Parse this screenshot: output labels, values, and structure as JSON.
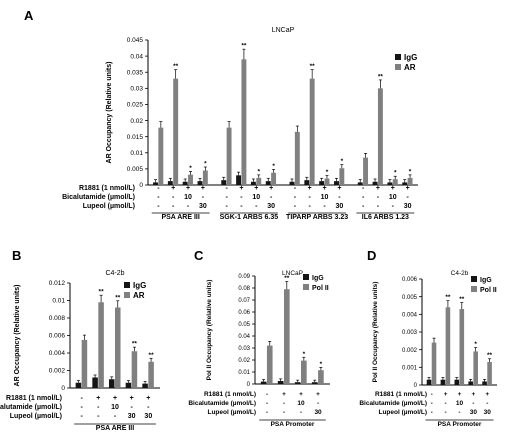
{
  "chart_data": [
    {
      "panel": "A",
      "type": "bar",
      "title": "LNCaP",
      "ylabel": "AR Occupancy (Relative units)",
      "ylim": [
        0,
        0.045
      ],
      "yticks": [
        "0",
        "0.005",
        "0.01",
        "0.015",
        "0.02",
        "0.025",
        "0.03",
        "0.035",
        "0.04",
        "0.045"
      ],
      "series": [
        {
          "name": "IgG"
        },
        {
          "name": "AR"
        }
      ],
      "colors": [
        "#151515",
        "#808080"
      ],
      "groups": [
        {
          "label": "PSA ARE III",
          "conditions": [
            {
              "igg": 0.0008,
              "ar": 0.0178,
              "sig": ""
            },
            {
              "igg": 0.0012,
              "ar": 0.033,
              "sig": "**"
            },
            {
              "igg": 0.001,
              "ar": 0.0032,
              "sig": "*"
            },
            {
              "igg": 0.0012,
              "ar": 0.0045,
              "sig": "*"
            }
          ]
        },
        {
          "label": "SGK-1 ARBS 6.35",
          "conditions": [
            {
              "igg": 0.0015,
              "ar": 0.0178,
              "sig": ""
            },
            {
              "igg": 0.003,
              "ar": 0.039,
              "sig": "**"
            },
            {
              "igg": 0.001,
              "ar": 0.0022,
              "sig": "*"
            },
            {
              "igg": 0.0012,
              "ar": 0.0038,
              "sig": "*"
            }
          ]
        },
        {
          "label": "TIPARP ARBS 3.23",
          "conditions": [
            {
              "igg": 0.001,
              "ar": 0.0165,
              "sig": ""
            },
            {
              "igg": 0.0015,
              "ar": 0.033,
              "sig": "**"
            },
            {
              "igg": 0.0012,
              "ar": 0.002,
              "sig": "*"
            },
            {
              "igg": 0.0012,
              "ar": 0.0052,
              "sig": "*"
            }
          ]
        },
        {
          "label": "IL6 ARBS 1.23",
          "conditions": [
            {
              "igg": 0.0008,
              "ar": 0.0085,
              "sig": ""
            },
            {
              "igg": 0.001,
              "ar": 0.03,
              "sig": "**"
            },
            {
              "igg": 0.0008,
              "ar": 0.0018,
              "sig": "*"
            },
            {
              "igg": 0.0008,
              "ar": 0.0022,
              "sig": "*"
            }
          ]
        }
      ],
      "treatment_labels": [
        "R1881 (1 nmol/L)",
        "Bicalutamide (µmol/L)",
        "Lupeol (µmol/L)"
      ],
      "treatment_values": [
        [
          "-",
          "+",
          "+",
          "+"
        ],
        [
          "-",
          "-",
          "10",
          "-"
        ],
        [
          "-",
          "-",
          "-",
          "30"
        ]
      ]
    },
    {
      "panel": "B",
      "type": "bar",
      "title": "C4-2b",
      "ylabel": "AR Occupancy (Relative units)",
      "ylim": [
        0,
        0.012
      ],
      "yticks": [
        "0",
        "0.002",
        "0.004",
        "0.006",
        "0.008",
        "0.01",
        "0.012"
      ],
      "series": [
        {
          "name": "IgG"
        },
        {
          "name": "AR"
        }
      ],
      "colors": [
        "#151515",
        "#808080"
      ],
      "groups": [
        {
          "label": "PSA ARE III",
          "conditions": [
            {
              "igg": 0.0006,
              "ar": 0.0055,
              "sig": ""
            },
            {
              "igg": 0.0012,
              "ar": 0.0098,
              "sig": "**"
            },
            {
              "igg": 0.001,
              "ar": 0.0092,
              "sig": "**"
            },
            {
              "igg": 0.0006,
              "ar": 0.0042,
              "sig": "**"
            },
            {
              "igg": 0.0005,
              "ar": 0.003,
              "sig": "**"
            }
          ]
        }
      ],
      "treatment_labels": [
        "R1881 (1 nmol/L)",
        "Bicalutamide (µmol/L)",
        "Lupeol (µmol/L)"
      ],
      "treatment_values": [
        [
          "-",
          "+",
          "+",
          "+",
          "+"
        ],
        [
          "-",
          "-",
          "10",
          "-",
          "-"
        ],
        [
          "-",
          "-",
          "-",
          "30",
          "30"
        ]
      ]
    },
    {
      "panel": "C",
      "type": "bar",
      "title": "LNCaP",
      "ylabel": "Pol II Occupancy (Relative units)",
      "ylim": [
        0,
        0.09
      ],
      "yticks": [
        "0",
        "0.01",
        "0.02",
        "0.03",
        "0.04",
        "0.05",
        "0.06",
        "0.07",
        "0.08",
        "0.09"
      ],
      "series": [
        {
          "name": "IgG"
        },
        {
          "name": "Pol II"
        }
      ],
      "colors": [
        "#151515",
        "#808080"
      ],
      "groups": [
        {
          "label": "PSA Promoter",
          "conditions": [
            {
              "igg": 0.002,
              "ar": 0.032,
              "sig": ""
            },
            {
              "igg": 0.0025,
              "ar": 0.079,
              "sig": "**"
            },
            {
              "igg": 0.0015,
              "ar": 0.0195,
              "sig": "*"
            },
            {
              "igg": 0.0015,
              "ar": 0.0115,
              "sig": "*"
            }
          ]
        }
      ],
      "treatment_labels": [
        "R1881 (1 nmol/L)",
        "Bicalutamide (µmol/L)",
        "Lupeol (µmol/L)"
      ],
      "treatment_values": [
        [
          "-",
          "+",
          "+",
          "+"
        ],
        [
          "-",
          "-",
          "10",
          "-"
        ],
        [
          "-",
          "-",
          "-",
          "30"
        ]
      ]
    },
    {
      "panel": "D",
      "type": "bar",
      "title": "C4-2b",
      "ylabel": "Pol II Occupancy (Relative units)",
      "ylim": [
        0,
        0.006
      ],
      "yticks": [
        "0",
        "0.001",
        "0.002",
        "0.003",
        "0.004",
        "0.005",
        "0.006"
      ],
      "series": [
        {
          "name": "IgG"
        },
        {
          "name": "Pol II"
        }
      ],
      "colors": [
        "#151515",
        "#808080"
      ],
      "groups": [
        {
          "label": "PSA Promoter",
          "conditions": [
            {
              "igg": 0.0003,
              "ar": 0.0024,
              "sig": ""
            },
            {
              "igg": 0.0003,
              "ar": 0.0044,
              "sig": "**"
            },
            {
              "igg": 0.0003,
              "ar": 0.0043,
              "sig": "**"
            },
            {
              "igg": 0.0002,
              "ar": 0.0019,
              "sig": "*"
            },
            {
              "igg": 0.0002,
              "ar": 0.0013,
              "sig": "**"
            }
          ]
        }
      ],
      "treatment_labels": [
        "R1881 (1 nmol/L)",
        "Bicalutamide (µmol/L)",
        "Lupeol (µmol/L)"
      ],
      "treatment_values": [
        [
          "-",
          "+",
          "+",
          "+",
          "+"
        ],
        [
          "-",
          "-",
          "10",
          "-",
          "-"
        ],
        [
          "-",
          "-",
          "-",
          "30",
          "30"
        ]
      ]
    }
  ]
}
